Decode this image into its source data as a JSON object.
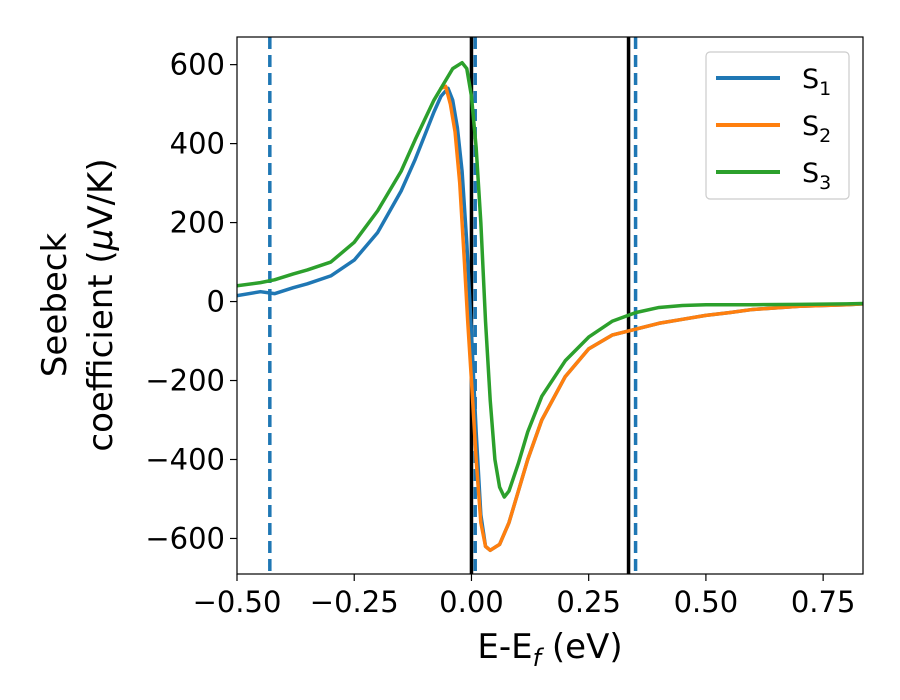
{
  "chart_data": {
    "type": "line",
    "xlabel": {
      "prefix": "E-E",
      "sub": "f",
      "suffix": " (eV)"
    },
    "ylabel": {
      "line1": "Seebeck",
      "line2_prefix": "coefficient  (",
      "line2_mu": "μ",
      "line2_suffix": "V/K)"
    },
    "xlim": [
      -0.5,
      0.835
    ],
    "ylim": [
      -690,
      670
    ],
    "xticks": [
      -0.5,
      -0.25,
      0.0,
      0.25,
      0.5,
      0.75
    ],
    "xtick_labels": [
      "−0.50",
      "−0.25",
      "0.00",
      "0.25",
      "0.50",
      "0.75"
    ],
    "yticks": [
      600,
      400,
      200,
      0,
      -200,
      -400,
      -600
    ],
    "ytick_labels": [
      "600",
      "400",
      "200",
      "0",
      "−200",
      "−400",
      "−600"
    ],
    "grid": false,
    "legend_position": "top-right",
    "series": [
      {
        "name_main": "S",
        "name_sub": "1",
        "color": "#1f77b4",
        "x": [
          -0.5,
          -0.45,
          -0.42,
          -0.38,
          -0.35,
          -0.3,
          -0.25,
          -0.2,
          -0.15,
          -0.12,
          -0.1,
          -0.08,
          -0.065,
          -0.05,
          -0.04,
          -0.03,
          -0.02,
          -0.01,
          0.0,
          0.01,
          0.02,
          0.03,
          0.04,
          0.06,
          0.08,
          0.1,
          0.12,
          0.15,
          0.2,
          0.25,
          0.3,
          0.35,
          0.4,
          0.45,
          0.5,
          0.55,
          0.6,
          0.65,
          0.7,
          0.75,
          0.8,
          0.835
        ],
        "y": [
          15,
          25,
          20,
          35,
          45,
          65,
          105,
          175,
          280,
          360,
          420,
          480,
          520,
          540,
          510,
          440,
          330,
          150,
          -80,
          -330,
          -540,
          -620,
          -630,
          -615,
          -560,
          -480,
          -400,
          -300,
          -190,
          -120,
          -85,
          -70,
          -55,
          -45,
          -35,
          -28,
          -20,
          -16,
          -12,
          -10,
          -8,
          -6
        ]
      },
      {
        "name_main": "S",
        "name_sub": "2",
        "color": "#ff7f0e",
        "x": [
          -0.065,
          -0.055,
          -0.045,
          -0.035,
          -0.025,
          -0.015,
          -0.008,
          0.0,
          0.01,
          0.02,
          0.03,
          0.04,
          0.06,
          0.08,
          0.1,
          0.12,
          0.15,
          0.2,
          0.25,
          0.3,
          0.35,
          0.4,
          0.45,
          0.5,
          0.55,
          0.6,
          0.65,
          0.7,
          0.75,
          0.8,
          0.835
        ],
        "y": [
          540,
          545,
          500,
          430,
          300,
          100,
          -50,
          -200,
          -400,
          -560,
          -620,
          -630,
          -615,
          -560,
          -480,
          -400,
          -300,
          -190,
          -120,
          -85,
          -70,
          -55,
          -45,
          -35,
          -28,
          -20,
          -16,
          -12,
          -10,
          -8,
          -6
        ]
      },
      {
        "name_main": "S",
        "name_sub": "3",
        "color": "#2ca02c",
        "x": [
          -0.5,
          -0.45,
          -0.42,
          -0.38,
          -0.35,
          -0.3,
          -0.25,
          -0.2,
          -0.15,
          -0.12,
          -0.1,
          -0.08,
          -0.06,
          -0.04,
          -0.02,
          -0.01,
          0.0,
          0.01,
          0.02,
          0.03,
          0.04,
          0.05,
          0.06,
          0.07,
          0.08,
          0.1,
          0.12,
          0.15,
          0.2,
          0.25,
          0.3,
          0.35,
          0.4,
          0.45,
          0.5,
          0.55,
          0.6,
          0.7,
          0.8,
          0.835
        ],
        "y": [
          40,
          48,
          55,
          70,
          80,
          100,
          150,
          230,
          330,
          410,
          460,
          510,
          550,
          590,
          605,
          590,
          520,
          390,
          200,
          -50,
          -250,
          -400,
          -470,
          -495,
          -480,
          -410,
          -330,
          -240,
          -150,
          -90,
          -50,
          -28,
          -15,
          -10,
          -8,
          -8,
          -8,
          -7,
          -6,
          -5
        ]
      }
    ],
    "vlines": [
      {
        "x": -0.43,
        "style": "dashed",
        "color": "#1f77b4"
      },
      {
        "x": 0.0,
        "style": "solid",
        "color": "#000000"
      },
      {
        "x": 0.008,
        "style": "dashed",
        "color": "#1f77b4"
      },
      {
        "x": 0.335,
        "style": "solid",
        "color": "#000000"
      },
      {
        "x": 0.35,
        "style": "dashed",
        "color": "#1f77b4"
      }
    ]
  }
}
